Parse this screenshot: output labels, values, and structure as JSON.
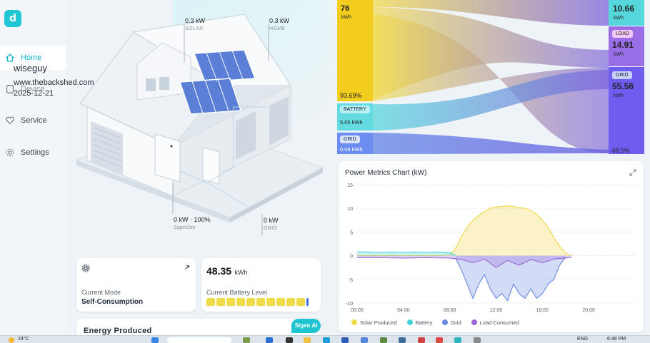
{
  "sidebar": {
    "logo_glyph": "d",
    "items": [
      {
        "label": "Home",
        "icon": "home-icon"
      },
      {
        "label": "Device",
        "icon": "device-icon"
      },
      {
        "label": "Service",
        "icon": "heart-hand-icon"
      },
      {
        "label": "Settings",
        "icon": "gear-icon"
      }
    ]
  },
  "watermark": {
    "user": "wiseguy",
    "site": "www.thebackshed.com",
    "date": "2025-12-21"
  },
  "house": {
    "solar": {
      "value": "0.3 kW",
      "label": "SOLAR"
    },
    "home": {
      "value": "0.3 kW",
      "label": "HOME"
    },
    "sigenstor": {
      "value": "0 kW · 100%",
      "label": "SigenStor"
    },
    "grid": {
      "value": "0 kW",
      "label": "GRID"
    }
  },
  "mode_card": {
    "label": "Current Mode",
    "value": "Self-Consumption"
  },
  "battery_card": {
    "value": "48.35",
    "unit": "kWh",
    "label": "Current Battery Level",
    "level_fraction": 0.97
  },
  "energy_card": {
    "title": "Energy Produced"
  },
  "sigen_ai": "Sigen AI",
  "sankey": {
    "solar": {
      "value": "76",
      "unit": "kWh",
      "pct": "93.69%"
    },
    "battery_in": {
      "label": "BATTERY",
      "value": "5.05 kWh"
    },
    "grid_in": {
      "label": "GRID",
      "value": "0.08 kWh"
    },
    "battery_out": {
      "value": "10.66",
      "unit": "kWh"
    },
    "load": {
      "label": "LOAD",
      "value": "14.91",
      "unit": "kWh"
    },
    "grid_out": {
      "label": "GRID",
      "value": "55.56",
      "unit": "kWh",
      "pct": "68.5%"
    }
  },
  "chart_data": {
    "type": "area",
    "title": "Power Metrics Chart (kW)",
    "xlabel": "",
    "ylabel": "",
    "x_ticks": [
      "00:00",
      "04:00",
      "08:00",
      "12:00",
      "16:00",
      "20:00"
    ],
    "y_ticks": [
      15,
      10,
      5,
      0,
      -5,
      -10
    ],
    "xlim": [
      0,
      24
    ],
    "ylim": [
      -10,
      15
    ],
    "grid": true,
    "legend_position": "bottom",
    "series": [
      {
        "name": "Solar Produced",
        "color": "#f1d847",
        "x": [
          0,
          6,
          7,
          8,
          8.5,
          9,
          9.5,
          10,
          10.5,
          11,
          11.5,
          12,
          12.5,
          13,
          13.5,
          14,
          14.5,
          15,
          15.5,
          16,
          16.5,
          17,
          17.5,
          18,
          18.5
        ],
        "y": [
          0,
          0,
          0,
          0.3,
          1.5,
          4,
          6,
          7.5,
          8.5,
          9.3,
          10,
          10.3,
          10.4,
          10.5,
          10.4,
          10.2,
          10,
          9.6,
          8.7,
          7.5,
          6,
          3.8,
          2,
          0.5,
          0
        ]
      },
      {
        "name": "Battery",
        "color": "#45d3d9",
        "x": [
          0,
          1,
          2,
          3,
          4,
          5,
          6,
          7,
          8,
          8.5
        ],
        "y": [
          0.8,
          0.8,
          0.7,
          0.8,
          0.7,
          0.8,
          0.7,
          0.8,
          0.6,
          0.1
        ]
      },
      {
        "name": "Grid",
        "color": "#6a8ae0",
        "x": [
          8.5,
          9,
          9.5,
          10,
          10.5,
          11,
          11.5,
          12,
          12.5,
          13,
          13.5,
          14,
          14.5,
          15,
          15.5,
          16,
          16.5,
          17,
          17.5,
          18
        ],
        "y": [
          -0.5,
          -3,
          -6,
          -9,
          -6,
          -4,
          -7,
          -9,
          -8,
          -9.5,
          -6,
          -8,
          -9,
          -7,
          -9,
          -8,
          -6,
          -5,
          -2,
          -0.3
        ]
      },
      {
        "name": "Load Consumed",
        "color": "#9a66d8",
        "x": [
          0,
          2,
          4,
          6,
          8,
          9,
          10,
          11,
          12,
          13,
          14,
          15,
          16,
          17,
          18,
          18.5
        ],
        "y": [
          -0.4,
          -0.4,
          -0.5,
          -0.4,
          -0.5,
          -0.8,
          -1.5,
          -0.7,
          -2.5,
          -1,
          -2,
          -0.8,
          -1.5,
          -0.7,
          -0.5,
          -0.3
        ]
      }
    ]
  },
  "taskbar": {
    "weather": "24°C",
    "lang": "ENG",
    "time": "6:48 PM"
  }
}
